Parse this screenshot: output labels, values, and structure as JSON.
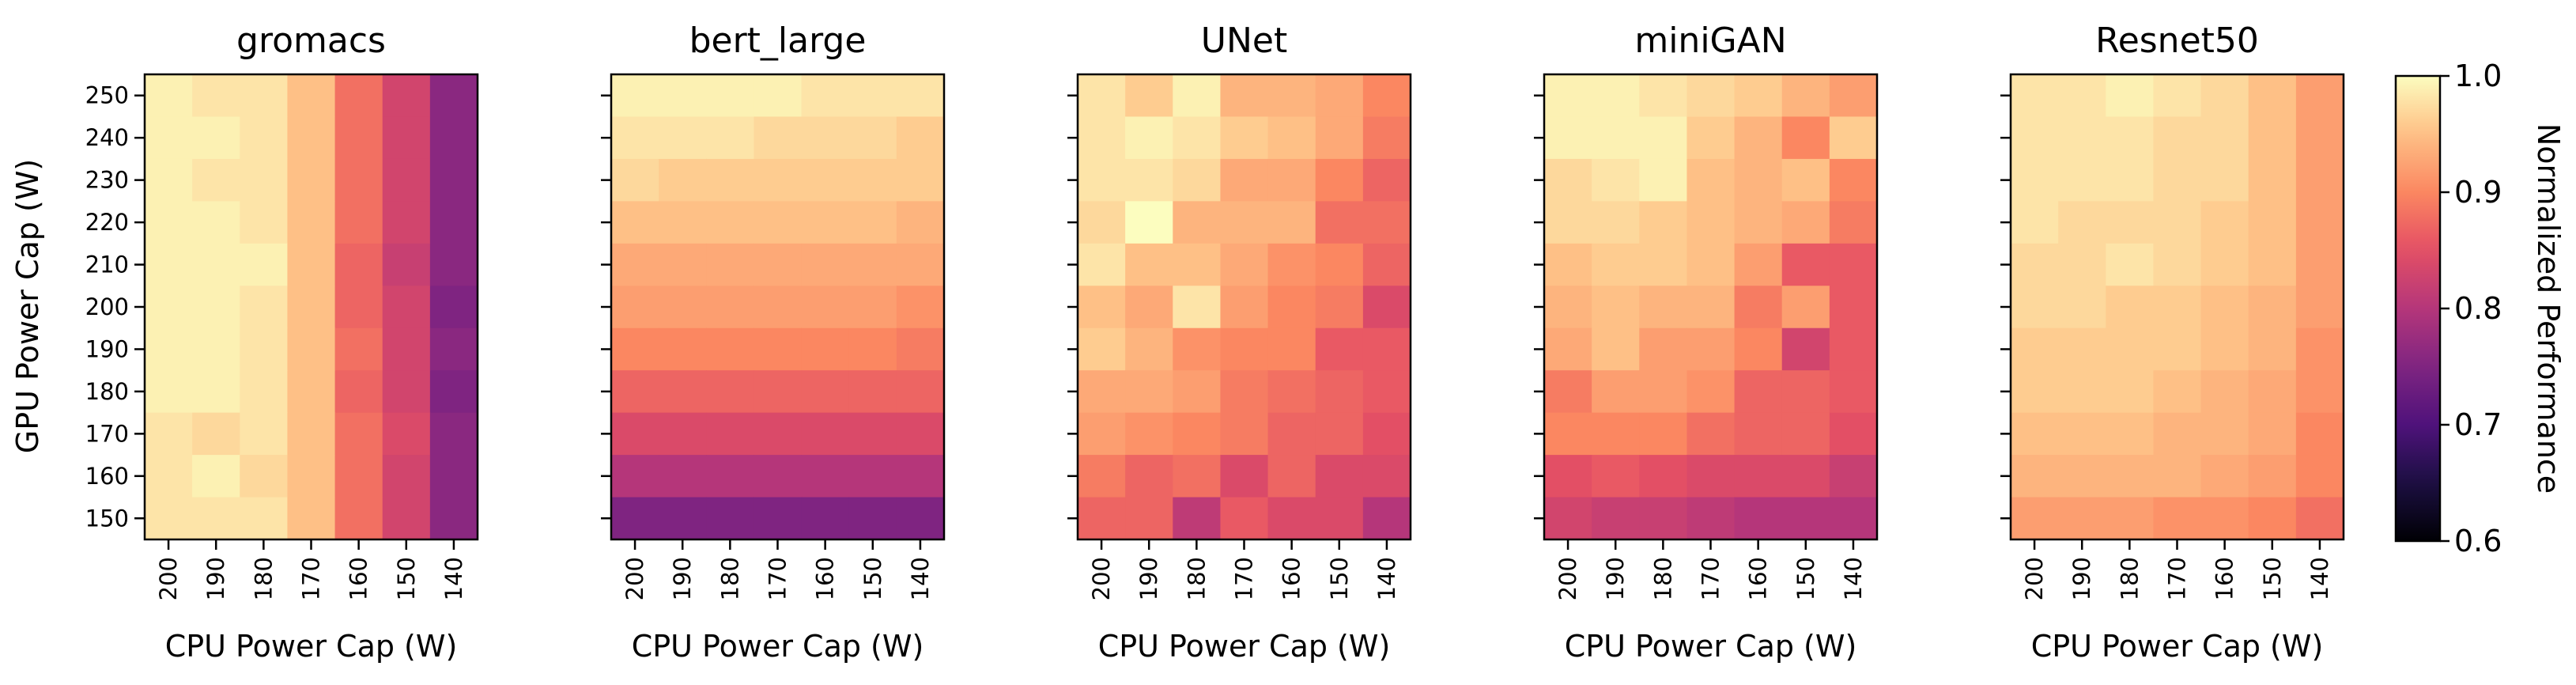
{
  "chart_data": {
    "type": "heatmap",
    "xlabel": "CPU Power Cap (W)",
    "ylabel": "GPU Power Cap (W)",
    "x_ticks": [
      "200",
      "190",
      "180",
      "170",
      "160",
      "150",
      "140"
    ],
    "y_ticks": [
      "250",
      "240",
      "230",
      "220",
      "210",
      "200",
      "190",
      "180",
      "170",
      "160",
      "150"
    ],
    "colormap": "magma",
    "colorbar": {
      "label": "Normalized Performance",
      "range": [
        0.6,
        1.0
      ],
      "ticks": [
        "0.6",
        "0.7",
        "0.8",
        "0.9",
        "1.0"
      ]
    },
    "panels": [
      {
        "title": "gromacs",
        "values": [
          [
            0.99,
            0.98,
            0.98,
            0.95,
            0.88,
            0.83,
            0.76
          ],
          [
            0.99,
            0.99,
            0.98,
            0.95,
            0.88,
            0.83,
            0.76
          ],
          [
            0.99,
            0.98,
            0.98,
            0.95,
            0.88,
            0.83,
            0.76
          ],
          [
            0.99,
            0.99,
            0.98,
            0.95,
            0.88,
            0.83,
            0.76
          ],
          [
            0.99,
            0.99,
            0.99,
            0.95,
            0.87,
            0.82,
            0.76
          ],
          [
            0.99,
            0.99,
            0.98,
            0.95,
            0.87,
            0.83,
            0.75
          ],
          [
            0.99,
            0.99,
            0.98,
            0.95,
            0.88,
            0.83,
            0.76
          ],
          [
            0.99,
            0.99,
            0.98,
            0.95,
            0.87,
            0.83,
            0.75
          ],
          [
            0.98,
            0.97,
            0.98,
            0.95,
            0.88,
            0.84,
            0.76
          ],
          [
            0.98,
            0.99,
            0.97,
            0.95,
            0.88,
            0.83,
            0.76
          ],
          [
            0.98,
            0.98,
            0.98,
            0.95,
            0.88,
            0.83,
            0.76
          ]
        ]
      },
      {
        "title": "bert_large",
        "values": [
          [
            0.99,
            0.99,
            0.99,
            0.99,
            0.98,
            0.98,
            0.98
          ],
          [
            0.98,
            0.98,
            0.98,
            0.97,
            0.97,
            0.97,
            0.96
          ],
          [
            0.97,
            0.96,
            0.96,
            0.96,
            0.96,
            0.96,
            0.96
          ],
          [
            0.95,
            0.95,
            0.95,
            0.95,
            0.95,
            0.95,
            0.94
          ],
          [
            0.93,
            0.93,
            0.93,
            0.93,
            0.93,
            0.93,
            0.93
          ],
          [
            0.92,
            0.92,
            0.92,
            0.92,
            0.92,
            0.92,
            0.91
          ],
          [
            0.9,
            0.9,
            0.9,
            0.9,
            0.9,
            0.9,
            0.89
          ],
          [
            0.87,
            0.87,
            0.87,
            0.87,
            0.87,
            0.87,
            0.87
          ],
          [
            0.84,
            0.84,
            0.84,
            0.84,
            0.84,
            0.84,
            0.84
          ],
          [
            0.8,
            0.8,
            0.8,
            0.8,
            0.8,
            0.8,
            0.8
          ],
          [
            0.75,
            0.75,
            0.75,
            0.75,
            0.75,
            0.75,
            0.75
          ]
        ]
      },
      {
        "title": "UNet",
        "values": [
          [
            0.98,
            0.96,
            0.99,
            0.94,
            0.94,
            0.93,
            0.9
          ],
          [
            0.98,
            0.99,
            0.98,
            0.96,
            0.95,
            0.93,
            0.89
          ],
          [
            0.98,
            0.98,
            0.97,
            0.93,
            0.93,
            0.9,
            0.87
          ],
          [
            0.97,
            1.0,
            0.94,
            0.94,
            0.94,
            0.88,
            0.88
          ],
          [
            0.98,
            0.95,
            0.95,
            0.93,
            0.91,
            0.9,
            0.87
          ],
          [
            0.95,
            0.93,
            0.98,
            0.92,
            0.9,
            0.89,
            0.84
          ],
          [
            0.96,
            0.94,
            0.91,
            0.9,
            0.9,
            0.86,
            0.86
          ],
          [
            0.93,
            0.93,
            0.92,
            0.89,
            0.88,
            0.87,
            0.86
          ],
          [
            0.92,
            0.91,
            0.9,
            0.89,
            0.87,
            0.87,
            0.85
          ],
          [
            0.89,
            0.87,
            0.88,
            0.84,
            0.87,
            0.84,
            0.84
          ],
          [
            0.87,
            0.87,
            0.81,
            0.86,
            0.84,
            0.84,
            0.8
          ]
        ]
      },
      {
        "title": "miniGAN",
        "values": [
          [
            0.99,
            0.99,
            0.98,
            0.97,
            0.96,
            0.94,
            0.92
          ],
          [
            0.99,
            0.99,
            0.99,
            0.96,
            0.94,
            0.9,
            0.96
          ],
          [
            0.97,
            0.98,
            0.99,
            0.95,
            0.94,
            0.95,
            0.9
          ],
          [
            0.97,
            0.97,
            0.96,
            0.95,
            0.94,
            0.93,
            0.89
          ],
          [
            0.95,
            0.96,
            0.96,
            0.95,
            0.92,
            0.86,
            0.86
          ],
          [
            0.94,
            0.95,
            0.94,
            0.94,
            0.89,
            0.92,
            0.86
          ],
          [
            0.93,
            0.95,
            0.92,
            0.92,
            0.9,
            0.83,
            0.86
          ],
          [
            0.89,
            0.92,
            0.92,
            0.91,
            0.87,
            0.87,
            0.86
          ],
          [
            0.9,
            0.9,
            0.9,
            0.88,
            0.87,
            0.87,
            0.85
          ],
          [
            0.85,
            0.86,
            0.85,
            0.84,
            0.84,
            0.84,
            0.82
          ],
          [
            0.83,
            0.82,
            0.82,
            0.81,
            0.8,
            0.8,
            0.8
          ]
        ]
      },
      {
        "title": "Resnet50",
        "values": [
          [
            0.98,
            0.98,
            0.99,
            0.98,
            0.97,
            0.95,
            0.92
          ],
          [
            0.98,
            0.98,
            0.98,
            0.97,
            0.97,
            0.95,
            0.92
          ],
          [
            0.98,
            0.98,
            0.98,
            0.97,
            0.97,
            0.95,
            0.92
          ],
          [
            0.98,
            0.97,
            0.97,
            0.97,
            0.96,
            0.95,
            0.92
          ],
          [
            0.97,
            0.97,
            0.98,
            0.97,
            0.96,
            0.95,
            0.92
          ],
          [
            0.97,
            0.97,
            0.96,
            0.96,
            0.95,
            0.94,
            0.92
          ],
          [
            0.96,
            0.96,
            0.96,
            0.96,
            0.95,
            0.94,
            0.91
          ],
          [
            0.96,
            0.96,
            0.96,
            0.95,
            0.94,
            0.93,
            0.91
          ],
          [
            0.95,
            0.95,
            0.95,
            0.94,
            0.94,
            0.93,
            0.9
          ],
          [
            0.94,
            0.94,
            0.94,
            0.94,
            0.93,
            0.92,
            0.9
          ],
          [
            0.92,
            0.92,
            0.92,
            0.91,
            0.91,
            0.9,
            0.88
          ]
        ]
      }
    ]
  }
}
